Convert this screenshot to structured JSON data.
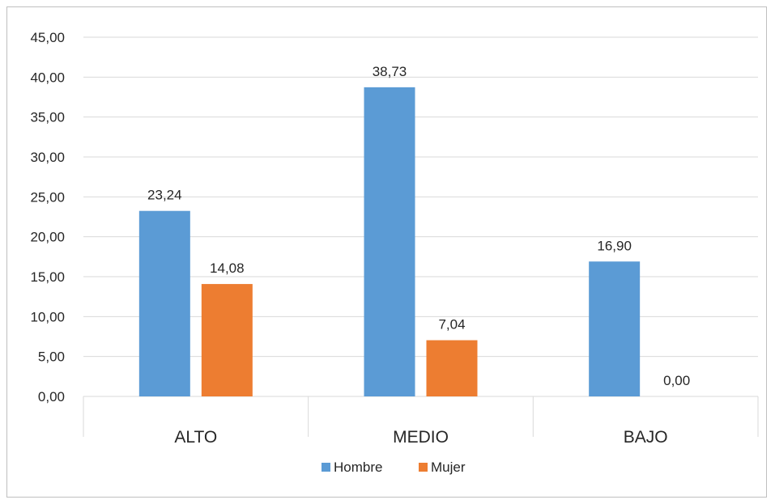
{
  "chart_data": {
    "type": "bar",
    "categories": [
      "ALTO",
      "MEDIO",
      "BAJO"
    ],
    "series": [
      {
        "name": "Hombre",
        "color": "#5b9bd5",
        "values": [
          23.24,
          38.73,
          16.9
        ],
        "labels": [
          "23,24",
          "38,73",
          "16,90"
        ]
      },
      {
        "name": "Mujer",
        "color": "#ed7d31",
        "values": [
          14.08,
          7.04,
          0.0
        ],
        "labels": [
          "14,08",
          "7,04",
          "0,00"
        ]
      }
    ],
    "yticks": [
      "0,00",
      "5,00",
      "10,00",
      "15,00",
      "20,00",
      "25,00",
      "30,00",
      "35,00",
      "40,00",
      "45,00"
    ],
    "ylim": [
      0,
      45
    ],
    "grid": true,
    "legend_position": "bottom",
    "title": "",
    "xlabel": "",
    "ylabel": ""
  }
}
